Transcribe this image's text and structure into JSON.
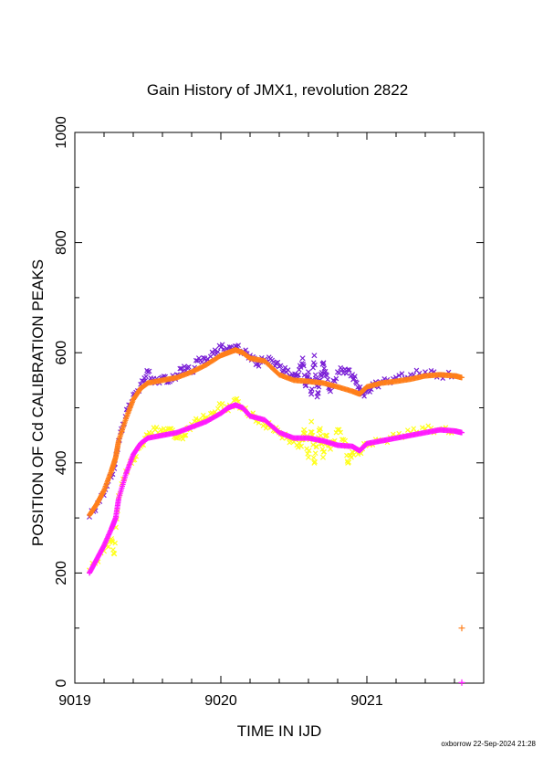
{
  "chart_data": {
    "type": "scatter",
    "title": "Gain History of JMX1, revolution 2822",
    "xlabel": "TIME IN IJD",
    "ylabel": "POSITION OF Cd CALIBRATION PEAKS",
    "xlim": [
      9019,
      9021.8
    ],
    "ylim": [
      0,
      1000
    ],
    "xticks": [
      "9019",
      "9020",
      "9021"
    ],
    "yticks": [
      "0",
      "200",
      "400",
      "600",
      "800",
      "1000"
    ],
    "grid": false,
    "legend": "none",
    "series": [
      {
        "color": "#7a1fd6",
        "marker": "x",
        "points": [
          [
            9019.1,
            302
          ],
          [
            9019.17,
            330
          ],
          [
            9019.22,
            358
          ],
          [
            9019.27,
            390
          ],
          [
            9019.3,
            440
          ],
          [
            9019.33,
            470
          ],
          [
            9019.37,
            505
          ],
          [
            9019.42,
            528
          ],
          [
            9019.47,
            548
          ],
          [
            9019.5,
            565
          ],
          [
            9019.55,
            545
          ],
          [
            9019.6,
            555
          ],
          [
            9019.65,
            548
          ],
          [
            9019.7,
            560
          ],
          [
            9019.75,
            575
          ],
          [
            9019.8,
            565
          ],
          [
            9019.85,
            590
          ],
          [
            9019.9,
            585
          ],
          [
            9019.95,
            598
          ],
          [
            9020.0,
            610
          ],
          [
            9020.05,
            604
          ],
          [
            9020.1,
            612
          ],
          [
            9020.15,
            602
          ],
          [
            9020.2,
            595
          ],
          [
            9020.25,
            580
          ],
          [
            9020.3,
            588
          ],
          [
            9020.35,
            586
          ],
          [
            9020.4,
            575
          ],
          [
            9020.45,
            565
          ],
          [
            9020.5,
            555
          ],
          [
            9020.53,
            560
          ],
          [
            9020.56,
            590
          ],
          [
            9020.58,
            540
          ],
          [
            9020.6,
            565
          ],
          [
            9020.62,
            525
          ],
          [
            9020.64,
            595
          ],
          [
            9020.66,
            520
          ],
          [
            9020.68,
            550
          ],
          [
            9020.7,
            580
          ],
          [
            9020.72,
            560
          ],
          [
            9020.75,
            530
          ],
          [
            9020.8,
            565
          ],
          [
            9020.85,
            570
          ],
          [
            9020.9,
            560
          ],
          [
            9020.93,
            545
          ],
          [
            9020.97,
            525
          ],
          [
            9021.0,
            530
          ],
          [
            9021.05,
            540
          ],
          [
            9021.1,
            545
          ],
          [
            9021.2,
            555
          ],
          [
            9021.3,
            560
          ],
          [
            9021.4,
            565
          ],
          [
            9021.5,
            560
          ],
          [
            9021.6,
            558
          ]
        ]
      },
      {
        "color": "#ff7f1a",
        "marker": "+",
        "points": [
          [
            9019.1,
            305
          ],
          [
            9019.15,
            325
          ],
          [
            9019.2,
            350
          ],
          [
            9019.25,
            385
          ],
          [
            9019.28,
            410
          ],
          [
            9019.3,
            440
          ],
          [
            9019.35,
            480
          ],
          [
            9019.4,
            515
          ],
          [
            9019.45,
            535
          ],
          [
            9019.5,
            545
          ],
          [
            9019.6,
            550
          ],
          [
            9019.7,
            555
          ],
          [
            9019.8,
            565
          ],
          [
            9019.9,
            578
          ],
          [
            9020.0,
            595
          ],
          [
            9020.05,
            600
          ],
          [
            9020.1,
            605
          ],
          [
            9020.15,
            600
          ],
          [
            9020.2,
            590
          ],
          [
            9020.3,
            585
          ],
          [
            9020.4,
            560
          ],
          [
            9020.5,
            550
          ],
          [
            9020.6,
            548
          ],
          [
            9020.7,
            545
          ],
          [
            9020.8,
            538
          ],
          [
            9020.9,
            530
          ],
          [
            9020.95,
            525
          ],
          [
            9021.0,
            538
          ],
          [
            9021.1,
            545
          ],
          [
            9021.2,
            548
          ],
          [
            9021.3,
            552
          ],
          [
            9021.4,
            558
          ],
          [
            9021.5,
            560
          ],
          [
            9021.6,
            558
          ],
          [
            9021.65,
            555
          ]
        ]
      },
      {
        "color": "#ffff1a",
        "marker": "x",
        "points": [
          [
            9019.1,
            205
          ],
          [
            9019.2,
            240
          ],
          [
            9019.25,
            262
          ],
          [
            9019.27,
            235
          ],
          [
            9019.3,
            340
          ],
          [
            9019.35,
            385
          ],
          [
            9019.4,
            405
          ],
          [
            9019.45,
            430
          ],
          [
            9019.5,
            450
          ],
          [
            9019.55,
            460
          ],
          [
            9019.6,
            455
          ],
          [
            9019.65,
            462
          ],
          [
            9019.7,
            445
          ],
          [
            9019.75,
            450
          ],
          [
            9019.8,
            470
          ],
          [
            9019.85,
            478
          ],
          [
            9019.9,
            482
          ],
          [
            9019.95,
            488
          ],
          [
            9020.0,
            505
          ],
          [
            9020.05,
            495
          ],
          [
            9020.1,
            515
          ],
          [
            9020.15,
            498
          ],
          [
            9020.2,
            488
          ],
          [
            9020.25,
            480
          ],
          [
            9020.3,
            470
          ],
          [
            9020.35,
            465
          ],
          [
            9020.4,
            455
          ],
          [
            9020.45,
            445
          ],
          [
            9020.5,
            438
          ],
          [
            9020.55,
            430
          ],
          [
            9020.57,
            460
          ],
          [
            9020.6,
            410
          ],
          [
            9020.62,
            475
          ],
          [
            9020.64,
            400
          ],
          [
            9020.66,
            440
          ],
          [
            9020.68,
            462
          ],
          [
            9020.7,
            410
          ],
          [
            9020.72,
            450
          ],
          [
            9020.75,
            425
          ],
          [
            9020.8,
            460
          ],
          [
            9020.85,
            440
          ],
          [
            9020.87,
            400
          ],
          [
            9020.9,
            420
          ],
          [
            9020.95,
            420
          ],
          [
            9021.0,
            435
          ],
          [
            9021.1,
            440
          ],
          [
            9021.2,
            448
          ],
          [
            9021.3,
            455
          ],
          [
            9021.4,
            462
          ],
          [
            9021.5,
            460
          ],
          [
            9021.6,
            458
          ]
        ]
      },
      {
        "color": "#ff1aff",
        "marker": "+",
        "points": [
          [
            9019.1,
            200
          ],
          [
            9019.15,
            225
          ],
          [
            9019.2,
            250
          ],
          [
            9019.25,
            280
          ],
          [
            9019.28,
            300
          ],
          [
            9019.3,
            335
          ],
          [
            9019.35,
            380
          ],
          [
            9019.4,
            415
          ],
          [
            9019.45,
            435
          ],
          [
            9019.5,
            445
          ],
          [
            9019.6,
            450
          ],
          [
            9019.7,
            455
          ],
          [
            9019.8,
            465
          ],
          [
            9019.9,
            475
          ],
          [
            9020.0,
            490
          ],
          [
            9020.05,
            500
          ],
          [
            9020.1,
            505
          ],
          [
            9020.15,
            500
          ],
          [
            9020.2,
            485
          ],
          [
            9020.3,
            478
          ],
          [
            9020.4,
            455
          ],
          [
            9020.5,
            445
          ],
          [
            9020.6,
            445
          ],
          [
            9020.7,
            440
          ],
          [
            9020.8,
            432
          ],
          [
            9020.9,
            430
          ],
          [
            9020.95,
            422
          ],
          [
            9021.0,
            435
          ],
          [
            9021.1,
            440
          ],
          [
            9021.2,
            445
          ],
          [
            9021.3,
            450
          ],
          [
            9021.4,
            455
          ],
          [
            9021.5,
            460
          ],
          [
            9021.6,
            458
          ],
          [
            9021.65,
            455
          ]
        ]
      }
    ],
    "stray_points": [
      {
        "x": 9021.65,
        "y": 100,
        "color": "#ff7f1a",
        "marker": "+"
      },
      {
        "x": 9021.65,
        "y": 1,
        "color": "#ff1aff",
        "marker": "+"
      }
    ]
  },
  "footer": "oxborrow 22-Sep-2024 21:28"
}
